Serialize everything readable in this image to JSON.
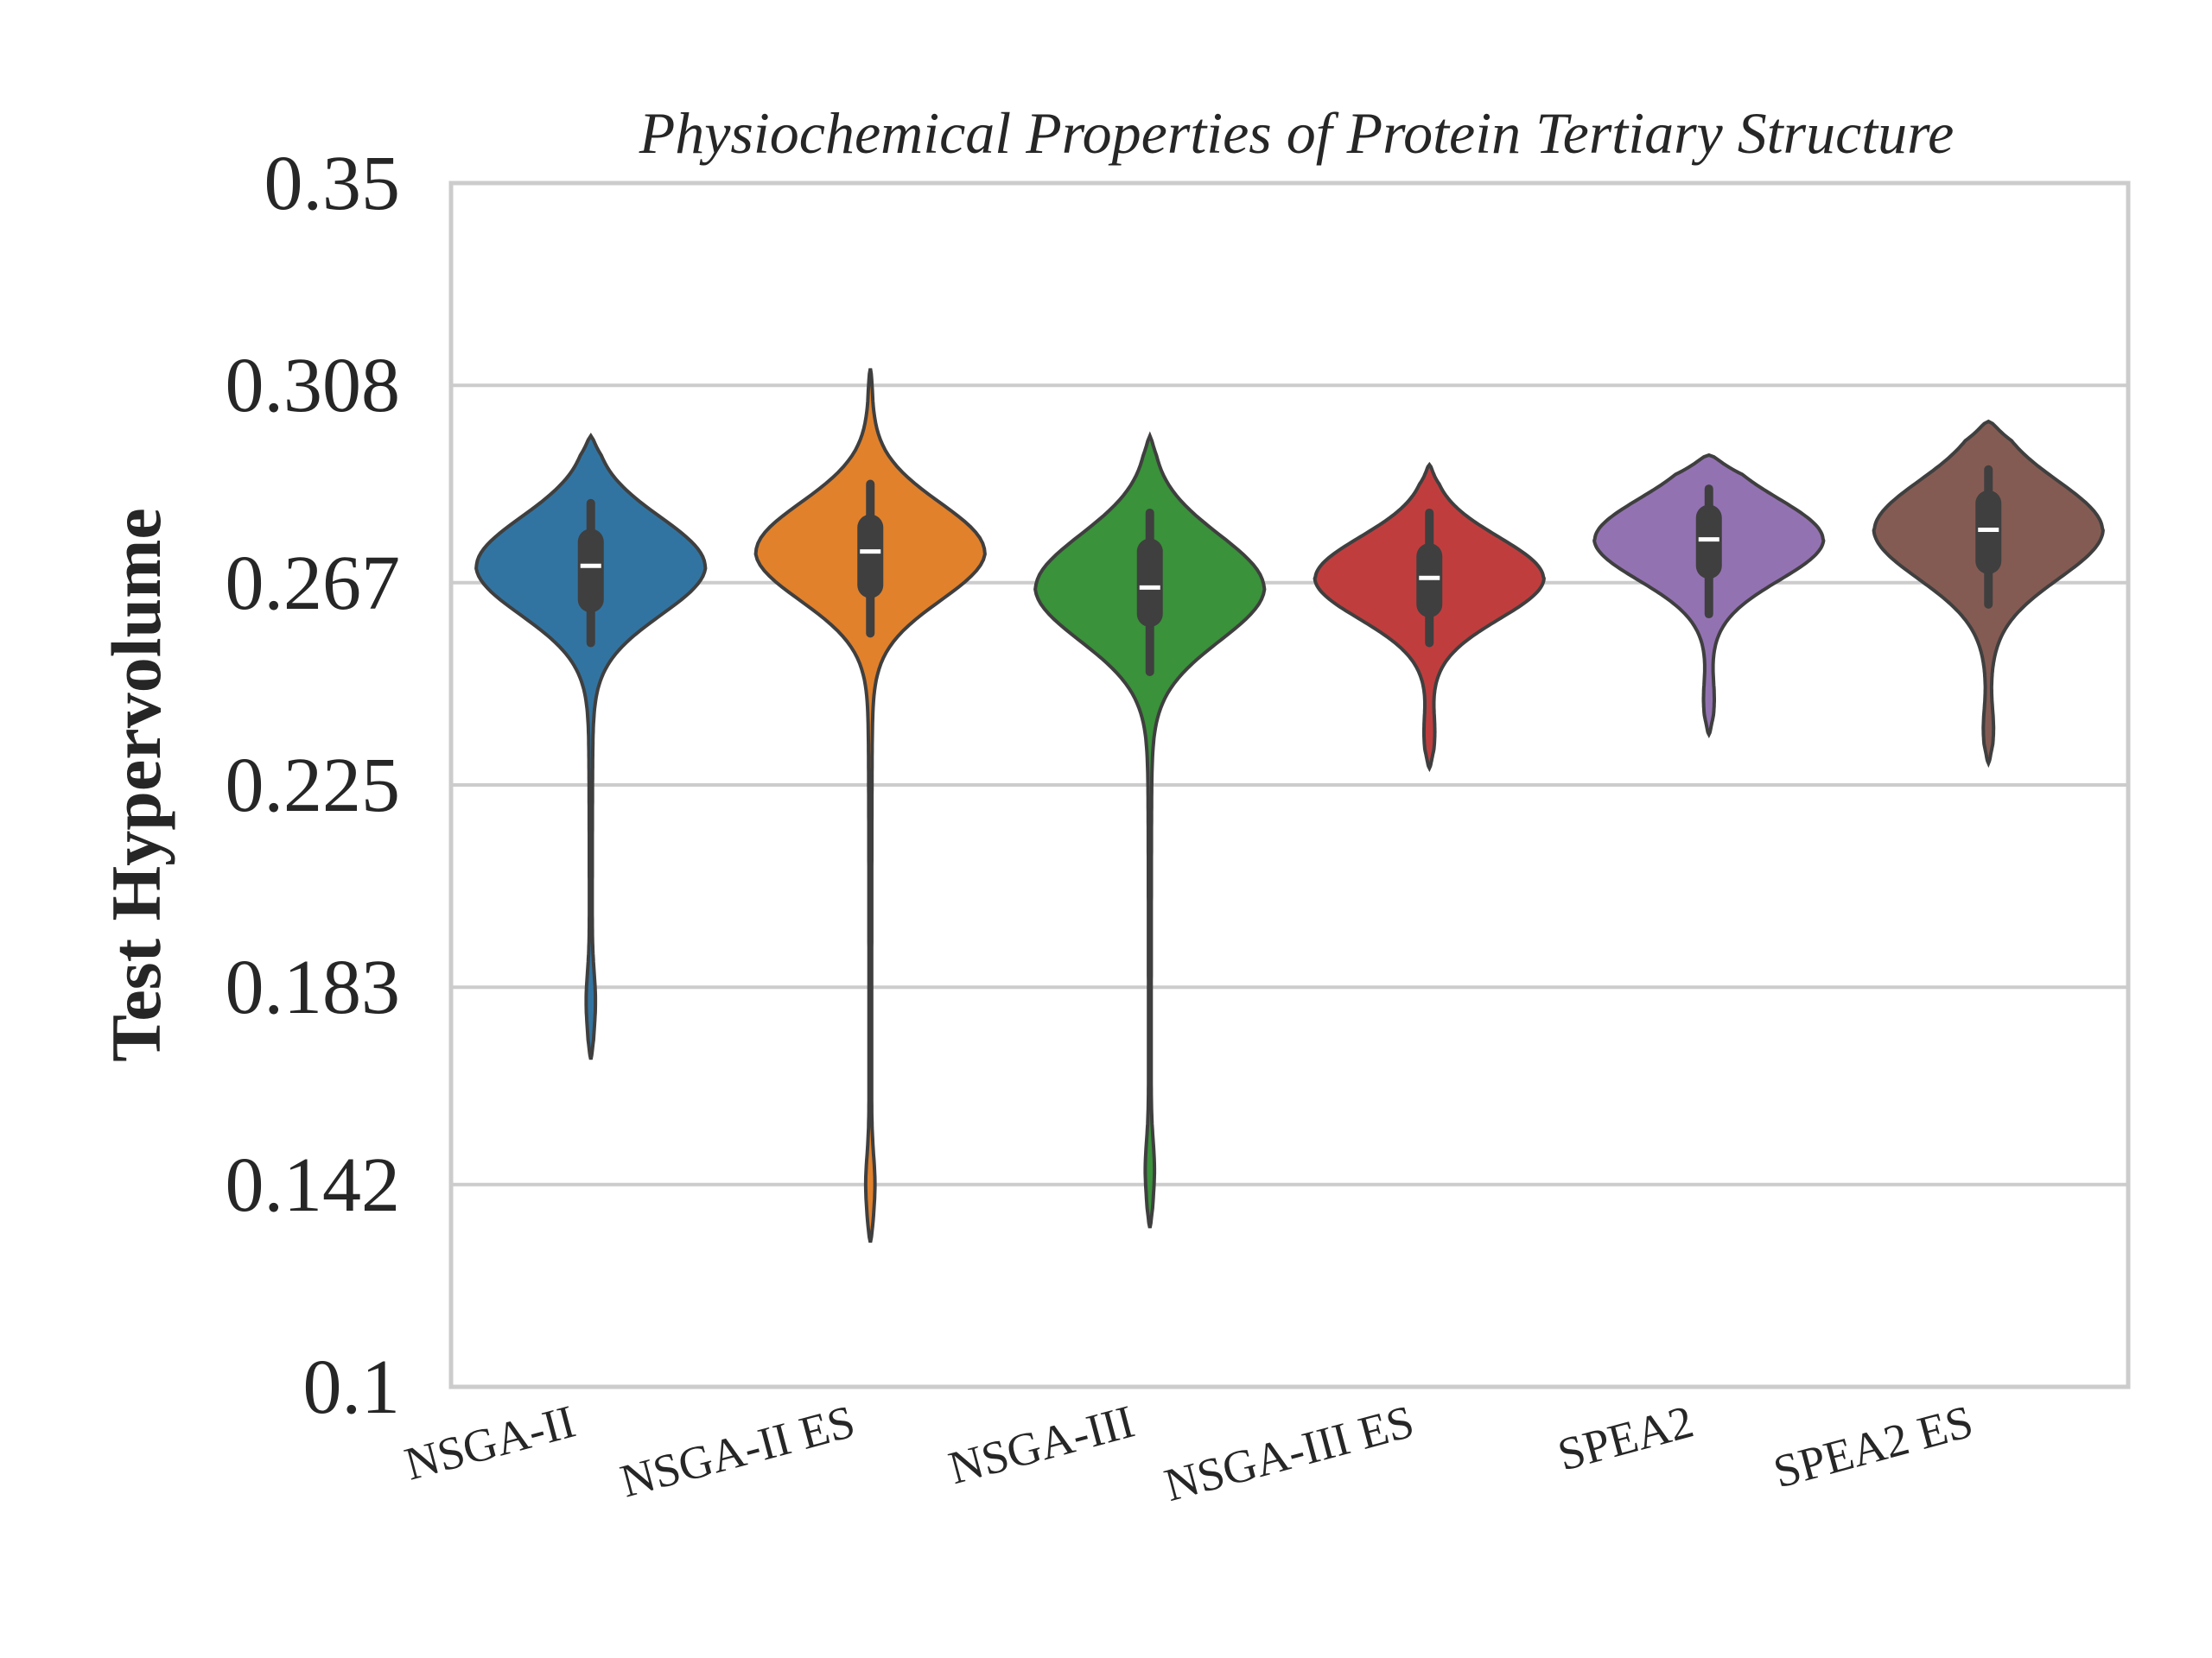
{
  "chart_data": {
    "type": "violin",
    "title": "Physiochemical Properties of Protein Tertiary Structure",
    "xlabel": "",
    "ylabel": "Test Hypervolume",
    "ylim": [
      0.1,
      0.35
    ],
    "yticks": [
      "0.1",
      "0.142",
      "0.183",
      "0.225",
      "0.267",
      "0.308",
      "0.35"
    ],
    "grid": "horizontal",
    "categories": [
      "NSGA-II",
      "NSGA-II ES",
      "NSGA-III",
      "NSGA-III ES",
      "SPEA2",
      "SPEA2 ES"
    ],
    "colors": [
      "#3274a1",
      "#e1812c",
      "#3a923a",
      "#c03d3e",
      "#9372b2",
      "#845b53"
    ],
    "series": [
      {
        "min": 0.168,
        "q1": 0.2635,
        "median": 0.2705,
        "q3": 0.2755,
        "max": 0.2975,
        "whisker_low": 0.2545,
        "whisker_high": 0.2835
      },
      {
        "min": 0.13,
        "q1": 0.2665,
        "median": 0.2735,
        "q3": 0.2785,
        "max": 0.3115,
        "whisker_low": 0.2565,
        "whisker_high": 0.2875
      },
      {
        "min": 0.133,
        "q1": 0.2605,
        "median": 0.266,
        "q3": 0.2735,
        "max": 0.2975,
        "whisker_low": 0.2485,
        "whisker_high": 0.2815
      },
      {
        "min": 0.2285,
        "q1": 0.2625,
        "median": 0.268,
        "q3": 0.2725,
        "max": 0.2915,
        "whisker_low": 0.2545,
        "whisker_high": 0.2815
      },
      {
        "min": 0.2355,
        "q1": 0.2705,
        "median": 0.276,
        "q3": 0.2805,
        "max": 0.2935,
        "whisker_low": 0.2605,
        "whisker_high": 0.2865
      },
      {
        "min": 0.2295,
        "q1": 0.2715,
        "median": 0.278,
        "q3": 0.2835,
        "max": 0.3005,
        "whisker_low": 0.2625,
        "whisker_high": 0.2905
      }
    ]
  }
}
